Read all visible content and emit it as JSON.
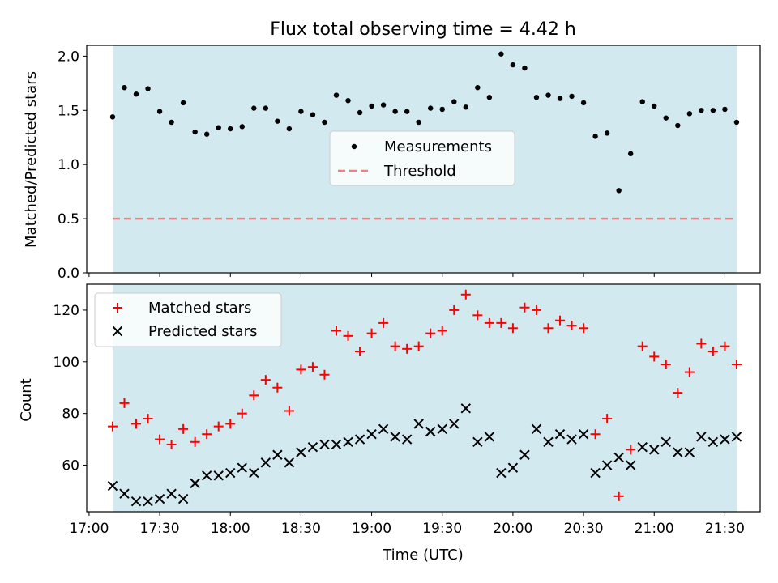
{
  "chart_data": [
    {
      "type": "scatter",
      "title": "Flux total observing time = 4.42 h",
      "xlabel": "",
      "ylabel": "Matched/Predicted stars",
      "ylim": [
        0,
        2.1
      ],
      "yticks": [
        "0.0",
        "0.5",
        "1.0",
        "1.5",
        "2.0"
      ],
      "legend_position": "center",
      "shaded_region_color": "#d3e9f0",
      "threshold": 0.5,
      "series": [
        {
          "name": "Measurements",
          "kind": "scatter",
          "color": "#000000",
          "x": [
            "17:10",
            "17:15",
            "17:20",
            "17:25",
            "17:30",
            "17:35",
            "17:40",
            "17:45",
            "17:50",
            "17:55",
            "18:00",
            "18:05",
            "18:10",
            "18:15",
            "18:20",
            "18:25",
            "18:30",
            "18:35",
            "18:40",
            "18:45",
            "18:50",
            "18:55",
            "19:00",
            "19:05",
            "19:10",
            "19:15",
            "19:20",
            "19:25",
            "19:30",
            "19:35",
            "19:40",
            "19:45",
            "19:50",
            "19:55",
            "20:00",
            "20:05",
            "20:10",
            "20:15",
            "20:20",
            "20:25",
            "20:30",
            "20:35",
            "20:40",
            "20:45",
            "20:50",
            "20:55",
            "21:00",
            "21:05",
            "21:10",
            "21:15",
            "21:20",
            "21:25",
            "21:30",
            "21:35"
          ],
          "y": [
            1.44,
            1.71,
            1.65,
            1.7,
            1.49,
            1.39,
            1.57,
            1.3,
            1.28,
            1.34,
            1.33,
            1.35,
            1.52,
            1.52,
            1.4,
            1.33,
            1.49,
            1.46,
            1.39,
            1.64,
            1.59,
            1.48,
            1.54,
            1.55,
            1.49,
            1.49,
            1.39,
            1.52,
            1.51,
            1.58,
            1.53,
            1.71,
            1.62,
            2.02,
            1.92,
            1.89,
            1.62,
            1.64,
            1.61,
            1.63,
            1.57,
            1.26,
            1.29,
            0.76,
            1.1,
            1.58,
            1.54,
            1.43,
            1.36,
            1.47,
            1.5,
            1.5,
            1.51,
            1.39
          ]
        },
        {
          "name": "Threshold",
          "kind": "dashed-line",
          "color": "#f08080",
          "value": 0.5
        }
      ]
    },
    {
      "type": "scatter",
      "title": "",
      "xlabel": "Time (UTC)",
      "ylabel": "Count",
      "ylim": [
        42,
        130
      ],
      "yticks": [
        "60",
        "80",
        "100",
        "120"
      ],
      "xticks": [
        "17:00",
        "17:30",
        "18:00",
        "18:30",
        "19:00",
        "19:30",
        "20:00",
        "20:30",
        "21:00",
        "21:30"
      ],
      "xlim": [
        "16:59",
        "21:45"
      ],
      "legend_position": "upper-left",
      "shaded_region_color": "#d3e9f0",
      "shaded_region": [
        "17:10",
        "21:35"
      ],
      "series": [
        {
          "name": "Matched stars",
          "kind": "plus-marker",
          "color": "#ff0000",
          "x": [
            "17:10",
            "17:15",
            "17:20",
            "17:25",
            "17:30",
            "17:35",
            "17:40",
            "17:45",
            "17:50",
            "17:55",
            "18:00",
            "18:05",
            "18:10",
            "18:15",
            "18:20",
            "18:25",
            "18:30",
            "18:35",
            "18:40",
            "18:45",
            "18:50",
            "18:55",
            "19:00",
            "19:05",
            "19:10",
            "19:15",
            "19:20",
            "19:25",
            "19:30",
            "19:35",
            "19:40",
            "19:45",
            "19:50",
            "19:55",
            "20:00",
            "20:05",
            "20:10",
            "20:15",
            "20:20",
            "20:25",
            "20:30",
            "20:35",
            "20:40",
            "20:45",
            "20:50",
            "20:55",
            "21:00",
            "21:05",
            "21:10",
            "21:15",
            "21:20",
            "21:25",
            "21:30",
            "21:35"
          ],
          "y": [
            75,
            84,
            76,
            78,
            70,
            68,
            74,
            69,
            72,
            75,
            76,
            80,
            87,
            93,
            90,
            81,
            97,
            98,
            95,
            112,
            110,
            104,
            111,
            115,
            106,
            105,
            106,
            111,
            112,
            120,
            126,
            118,
            115,
            115,
            113,
            121,
            120,
            113,
            116,
            114,
            113,
            72,
            78,
            48,
            66,
            106,
            102,
            99,
            88,
            96,
            107,
            104,
            106,
            99
          ]
        },
        {
          "name": "Predicted stars",
          "kind": "x-marker",
          "color": "#000000",
          "x": [
            "17:10",
            "17:15",
            "17:20",
            "17:25",
            "17:30",
            "17:35",
            "17:40",
            "17:45",
            "17:50",
            "17:55",
            "18:00",
            "18:05",
            "18:10",
            "18:15",
            "18:20",
            "18:25",
            "18:30",
            "18:35",
            "18:40",
            "18:45",
            "18:50",
            "18:55",
            "19:00",
            "19:05",
            "19:10",
            "19:15",
            "19:20",
            "19:25",
            "19:30",
            "19:35",
            "19:40",
            "19:45",
            "19:50",
            "19:55",
            "20:00",
            "20:05",
            "20:10",
            "20:15",
            "20:20",
            "20:25",
            "20:30",
            "20:35",
            "20:40",
            "20:45",
            "20:50",
            "20:55",
            "21:00",
            "21:05",
            "21:10",
            "21:15",
            "21:20",
            "21:25",
            "21:30",
            "21:35"
          ],
          "y": [
            52,
            49,
            46,
            46,
            47,
            49,
            47,
            53,
            56,
            56,
            57,
            59,
            57,
            61,
            64,
            61,
            65,
            67,
            68,
            68,
            69,
            70,
            72,
            74,
            71,
            70,
            76,
            73,
            74,
            76,
            82,
            69,
            71,
            57,
            59,
            64,
            74,
            69,
            72,
            70,
            72,
            57,
            60,
            63,
            60,
            67,
            66,
            69,
            65,
            65,
            71,
            69,
            70,
            71
          ]
        }
      ]
    }
  ]
}
